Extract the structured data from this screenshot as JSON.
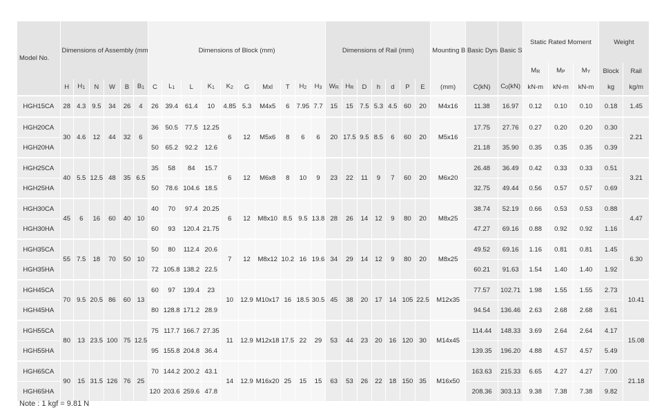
{
  "headers": {
    "model": "Model No.",
    "assembly": "Dimensions of Assembly (mm)",
    "block": "Dimensions of Block (mm)",
    "rail": "Dimensions of Rail (mm)",
    "mounting": "Mounting Bolt for Rail",
    "dynamic": "Basic Dynamic Load Rating",
    "static": "Basic Static Load Rating",
    "moment": "Static Rated Moment",
    "weight": "Weight",
    "cols": [
      "H",
      "H1",
      "N",
      "W",
      "B",
      "B1",
      "C",
      "L1",
      "L",
      "K1",
      "K2",
      "G",
      "Mxl",
      "T",
      "H2",
      "H3",
      "WR",
      "HR",
      "D",
      "h",
      "d",
      "P",
      "E"
    ],
    "mounting_unit": "(mm)",
    "c_unit": "C(kN)",
    "c0_unit": "C0(kN)",
    "mr": "MR",
    "mp": "MP",
    "my": "MY",
    "moment_unit": "kN-m",
    "block_w": "Block",
    "rail_w": "Rail",
    "block_unit": "kg",
    "rail_unit": "kg/m"
  },
  "groups": [
    {
      "shared": [
        "28",
        "4.3",
        "9.5",
        "34",
        "26",
        "4"
      ],
      "mid": [
        "4.85",
        "5.3",
        "M4x5",
        "6",
        "7.95",
        "7.7",
        "15",
        "15",
        "7.5",
        "5.3",
        "4.5",
        "60",
        "20",
        "M4x16"
      ],
      "rail_kg": "1.45",
      "rows": [
        {
          "model": "HGH15CA",
          "c": "26",
          "l1": "39.4",
          "l": "61.4",
          "k1": "10",
          "dyn": "11.38",
          "sta": "16.97",
          "mr": "0.12",
          "mp": "0.10",
          "my": "0.10",
          "block": "0.18"
        }
      ]
    },
    {
      "shared": [
        "30",
        "4.6",
        "12",
        "44",
        "32",
        "6"
      ],
      "mid": [
        "6",
        "12",
        "M5x6",
        "8",
        "6",
        "6",
        "20",
        "17.5",
        "9.5",
        "8.5",
        "6",
        "60",
        "20",
        "M5x16"
      ],
      "rail_kg": "2.21",
      "rows": [
        {
          "model": "HGH20CA",
          "c": "36",
          "l1": "50.5",
          "l": "77.5",
          "k1": "12.25",
          "dyn": "17.75",
          "sta": "27.76",
          "mr": "0.27",
          "mp": "0.20",
          "my": "0.20",
          "block": "0.30"
        },
        {
          "model": "HGH20HA",
          "c": "50",
          "l1": "65.2",
          "l": "92.2",
          "k1": "12.6",
          "dyn": "21.18",
          "sta": "35.90",
          "mr": "0.35",
          "mp": "0.35",
          "my": "0.35",
          "block": "0.39"
        }
      ]
    },
    {
      "shared": [
        "40",
        "5.5",
        "12.5",
        "48",
        "35",
        "6.5"
      ],
      "mid": [
        "6",
        "12",
        "M6x8",
        "8",
        "10",
        "9",
        "23",
        "22",
        "11",
        "9",
        "7",
        "60",
        "20",
        "M6x20"
      ],
      "rail_kg": "3.21",
      "rows": [
        {
          "model": "HGH25CA",
          "c": "35",
          "l1": "58",
          "l": "84",
          "k1": "15.7",
          "dyn": "26.48",
          "sta": "36.49",
          "mr": "0.42",
          "mp": "0.33",
          "my": "0.33",
          "block": "0.51"
        },
        {
          "model": "HGH25HA",
          "c": "50",
          "l1": "78.6",
          "l": "104.6",
          "k1": "18.5",
          "dyn": "32.75",
          "sta": "49.44",
          "mr": "0.56",
          "mp": "0.57",
          "my": "0.57",
          "block": "0.69"
        }
      ]
    },
    {
      "shared": [
        "45",
        "6",
        "16",
        "60",
        "40",
        "10"
      ],
      "mid": [
        "6",
        "12",
        "M8x10",
        "8.5",
        "9.5",
        "13.8",
        "28",
        "26",
        "14",
        "12",
        "9",
        "80",
        "20",
        "M8x25"
      ],
      "rail_kg": "4.47",
      "rows": [
        {
          "model": "HGH30CA",
          "c": "40",
          "l1": "70",
          "l": "97.4",
          "k1": "20.25",
          "dyn": "38.74",
          "sta": "52.19",
          "mr": "0.66",
          "mp": "0.53",
          "my": "0.53",
          "block": "0.88"
        },
        {
          "model": "HGH30HA",
          "c": "60",
          "l1": "93",
          "l": "120.4",
          "k1": "21.75",
          "dyn": "47.27",
          "sta": "69.16",
          "mr": "0.88",
          "mp": "0.92",
          "my": "0.92",
          "block": "1.16"
        }
      ]
    },
    {
      "shared": [
        "55",
        "7.5",
        "18",
        "70",
        "50",
        "10"
      ],
      "mid": [
        "7",
        "12",
        "M8x12",
        "10.2",
        "16",
        "19.6",
        "34",
        "29",
        "14",
        "12",
        "9",
        "80",
        "20",
        "M8x25"
      ],
      "rail_kg": "6.30",
      "rows": [
        {
          "model": "HGH35CA",
          "c": "50",
          "l1": "80",
          "l": "112.4",
          "k1": "20.6",
          "dyn": "49.52",
          "sta": "69.16",
          "mr": "1.16",
          "mp": "0.81",
          "my": "0.81",
          "block": "1.45"
        },
        {
          "model": "HGH35HA",
          "c": "72",
          "l1": "105.8",
          "l": "138.2",
          "k1": "22.5",
          "dyn": "60.21",
          "sta": "91.63",
          "mr": "1.54",
          "mp": "1.40",
          "my": "1.40",
          "block": "1.92"
        }
      ]
    },
    {
      "shared": [
        "70",
        "9.5",
        "20.5",
        "86",
        "60",
        "13"
      ],
      "mid": [
        "10",
        "12.9",
        "M10x17",
        "16",
        "18.5",
        "30.5",
        "45",
        "38",
        "20",
        "17",
        "14",
        "105",
        "22.5",
        "M12x35"
      ],
      "rail_kg": "10.41",
      "rows": [
        {
          "model": "HGH45CA",
          "c": "60",
          "l1": "97",
          "l": "139.4",
          "k1": "23",
          "dyn": "77.57",
          "sta": "102.71",
          "mr": "1.98",
          "mp": "1.55",
          "my": "1.55",
          "block": "2.73"
        },
        {
          "model": "HGH45HA",
          "c": "80",
          "l1": "128.8",
          "l": "171.2",
          "k1": "28.9",
          "dyn": "94.54",
          "sta": "136.46",
          "mr": "2.63",
          "mp": "2.68",
          "my": "2.68",
          "block": "3.61"
        }
      ]
    },
    {
      "shared": [
        "80",
        "13",
        "23.5",
        "100",
        "75",
        "12.5"
      ],
      "mid": [
        "11",
        "12.9",
        "M12x18",
        "17.5",
        "22",
        "29",
        "53",
        "44",
        "23",
        "20",
        "16",
        "120",
        "30",
        "M14x45"
      ],
      "rail_kg": "15.08",
      "rows": [
        {
          "model": "HGH55CA",
          "c": "75",
          "l1": "117.7",
          "l": "166.7",
          "k1": "27.35",
          "dyn": "114.44",
          "sta": "148.33",
          "mr": "3.69",
          "mp": "2.64",
          "my": "2.64",
          "block": "4.17"
        },
        {
          "model": "HGH55HA",
          "c": "95",
          "l1": "155.8",
          "l": "204.8",
          "k1": "36.4",
          "dyn": "139.35",
          "sta": "196.20",
          "mr": "4.88",
          "mp": "4.57",
          "my": "4.57",
          "block": "5.49"
        }
      ]
    },
    {
      "shared": [
        "90",
        "15",
        "31.5",
        "126",
        "76",
        "25"
      ],
      "mid": [
        "14",
        "12.9",
        "M16x20",
        "25",
        "15",
        "15",
        "63",
        "53",
        "26",
        "22",
        "18",
        "150",
        "35",
        "M16x50"
      ],
      "rail_kg": "21.18",
      "rows": [
        {
          "model": "HGH65CA",
          "c": "70",
          "l1": "144.2",
          "l": "200.2",
          "k1": "43.1",
          "dyn": "163.63",
          "sta": "215.33",
          "mr": "6.65",
          "mp": "4.27",
          "my": "4.27",
          "block": "7.00"
        },
        {
          "model": "HGH65HA",
          "c": "120",
          "l1": "203.6",
          "l": "259.6",
          "k1": "47.8",
          "dyn": "208.36",
          "sta": "303.13",
          "mr": "9.38",
          "mp": "7.38",
          "my": "7.38",
          "block": "9.82"
        }
      ]
    }
  ],
  "note": "Note : 1 kgf = 9.81 N"
}
